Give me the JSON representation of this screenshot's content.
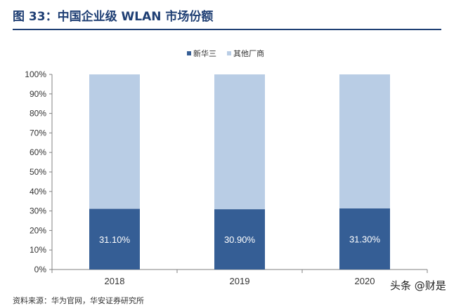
{
  "figure": {
    "title": "图 33：中国企业级 WLAN 市场份额"
  },
  "watermark": "头条 @财是",
  "source_note": "资料来源：华为官网，华安证券研究所",
  "colors": {
    "title": "#1f3f74",
    "h3c": "#355e95",
    "others": "#b9cde5",
    "axis": "#808080"
  },
  "chart_data": {
    "type": "bar",
    "stacked": true,
    "percent": true,
    "categories": [
      "2018",
      "2019",
      "2020"
    ],
    "series": [
      {
        "name": "新华三",
        "values": [
          31.1,
          30.9,
          31.3
        ],
        "labels": [
          "31.10%",
          "30.90%",
          "31.30%"
        ]
      },
      {
        "name": "其他厂商",
        "values": [
          68.9,
          69.1,
          68.7
        ]
      }
    ],
    "yticks": [
      "0%",
      "10%",
      "20%",
      "30%",
      "40%",
      "50%",
      "60%",
      "70%",
      "80%",
      "90%",
      "100%"
    ],
    "ylim": [
      0,
      100
    ],
    "grid": false,
    "legend": "top-center"
  }
}
